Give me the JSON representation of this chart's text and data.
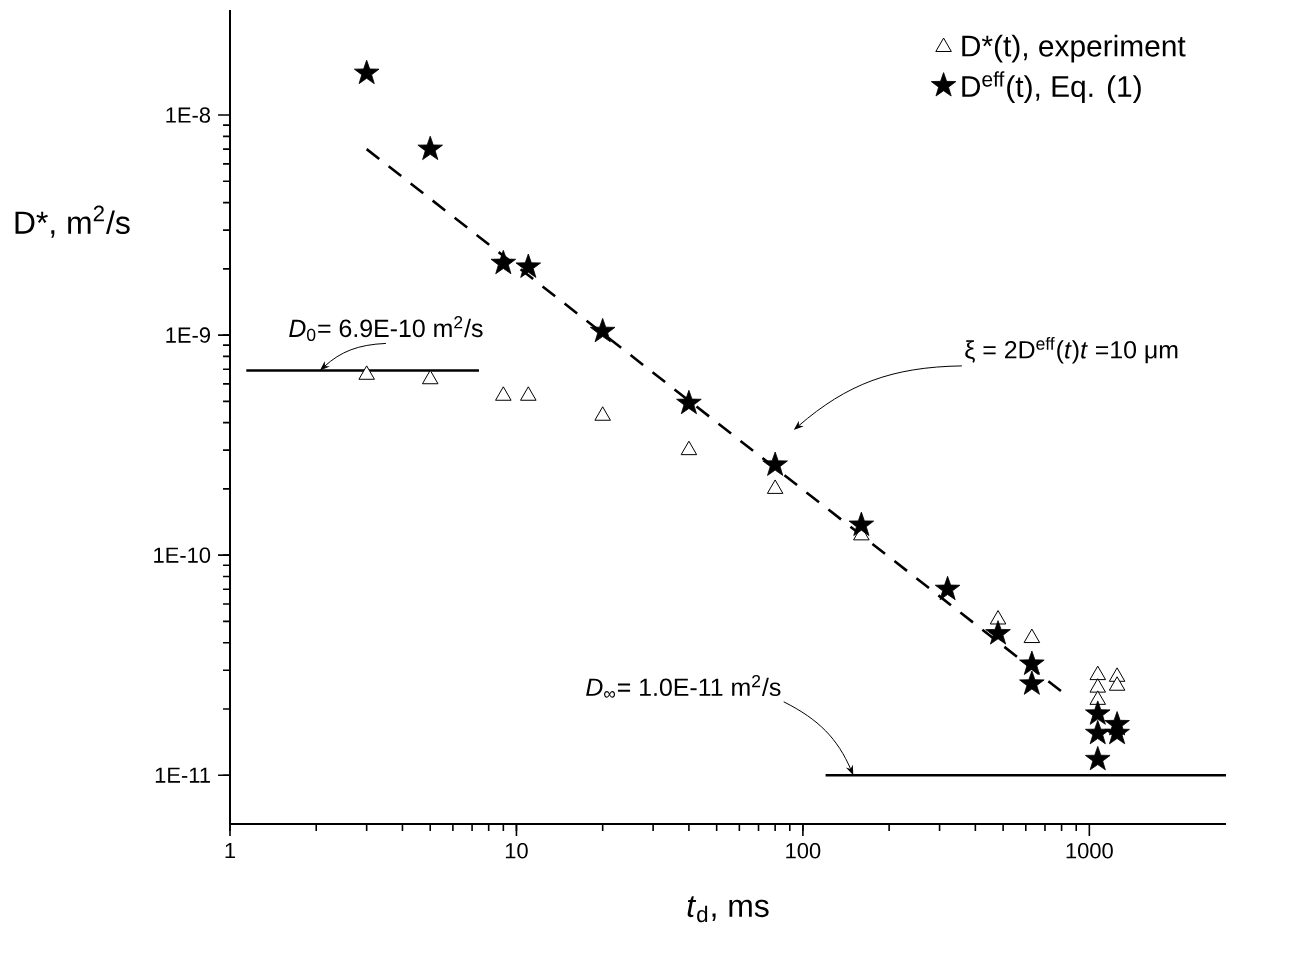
{
  "chart_data": {
    "type": "scatter",
    "xlabel": "*t*$_{d}$, ms",
    "ylabel": "D*, m$^{2}$/s",
    "log": "xy",
    "xlim": [
      1,
      3000
    ],
    "ylim": [
      6e-12,
      3e-08
    ],
    "xticks": [
      1,
      10,
      100,
      1000
    ],
    "yticks": [
      {
        "value": 1e-11,
        "label": "1E-11"
      },
      {
        "value": 1e-10,
        "label": "1E-10"
      },
      {
        "value": 1e-09,
        "label": "1E-9"
      },
      {
        "value": 1e-08,
        "label": "1E-8"
      }
    ],
    "legend": "top right",
    "series": [
      {
        "name": "D*(t), experiment",
        "marker": "triangle",
        "color": "#000000",
        "x": [
          3,
          5,
          9,
          11,
          20,
          40,
          80,
          160,
          480,
          630,
          1070,
          1070,
          1070,
          1250,
          1250
        ],
        "values": [
          6.6e-10,
          6.3e-10,
          5.3e-10,
          5.3e-10,
          4.3e-10,
          3e-10,
          2e-10,
          1.23e-10,
          5.1e-11,
          4.2e-11,
          2.85e-11,
          2.5e-11,
          2.2e-11,
          2.8e-11,
          2.55e-11
        ]
      },
      {
        "name": "D$^{eff}$(t),  Eq. (1)",
        "marker": "star",
        "color": "#000000",
        "x": [
          3,
          5,
          9,
          11,
          20,
          40,
          80,
          160,
          320,
          480,
          630,
          630,
          1070,
          1070,
          1070,
          1250,
          1250
        ],
        "values": [
          1.55e-08,
          7e-09,
          2.12e-09,
          2.04e-09,
          1.04e-09,
          4.9e-10,
          2.57e-10,
          1.37e-10,
          7e-11,
          4.4e-11,
          3.2e-11,
          2.6e-11,
          1.9e-11,
          1.55e-11,
          1.18e-11,
          1.7e-11,
          1.55e-11
        ]
      },
      {
        "type": "line",
        "line_style": "dashed",
        "marker": "none",
        "color": "#000000",
        "x": [
          3,
          800
        ],
        "values": [
          7e-09,
          2.4e-11
        ]
      },
      {
        "type": "line",
        "line_style": "solid",
        "marker": "none",
        "color": "#000000",
        "x": [
          1.14,
          7.4
        ],
        "values": [
          6.9e-10,
          6.9e-10
        ]
      },
      {
        "type": "line",
        "line_style": "solid",
        "marker": "none",
        "color": "#000000",
        "x": [
          120,
          3000
        ],
        "values": [
          1e-11,
          1e-11
        ]
      }
    ],
    "annotations": [
      {
        "text": "*D*$_{0}$= 6.9E-10 m$^{2}$/s",
        "x": 2.06,
        "y": 6.9e-10
      },
      "ξ = 2D$^{eff}$(*t*)*t* =10 μm",
      {
        "text": "*D*$_{∞}$= 1.0E-11 m$^{2}$/s",
        "x": 150,
        "y": 1e-11
      }
    ]
  }
}
